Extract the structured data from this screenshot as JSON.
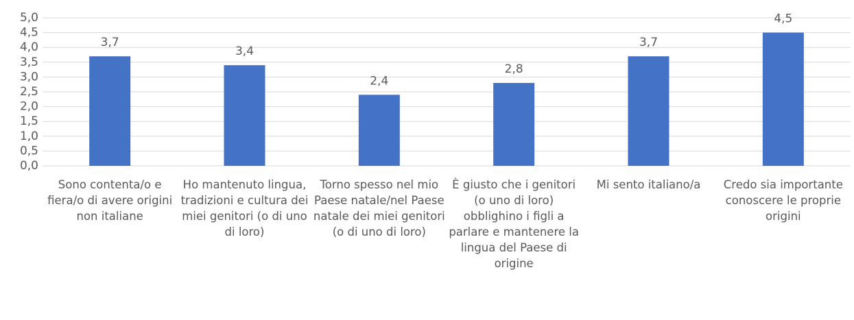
{
  "chart_data": {
    "type": "bar",
    "categories": [
      "Sono contenta/o e fiera/o di avere origini non italiane",
      "Ho mantenuto lingua, tradizioni e cultura dei miei genitori (o di uno di loro)",
      "Torno spesso nel mio Paese natale/nel Paese natale dei miei genitori (o di uno di loro)",
      "È giusto che i genitori (o uno di loro) obblighino i figli a parlare e mantenere la lingua del Paese di origine",
      "Mi sento italiano/a",
      "Credo sia importante conoscere le proprie origini"
    ],
    "values": [
      3.7,
      3.4,
      2.4,
      2.8,
      3.7,
      4.5
    ],
    "value_labels": [
      "3,7",
      "3,4",
      "2,4",
      "2,8",
      "3,7",
      "4,5"
    ],
    "color": "#4472c4",
    "ylim": [
      0,
      5
    ],
    "yticks": [
      {
        "value": 0,
        "label": "0,0"
      },
      {
        "value": 0.5,
        "label": "0,5"
      },
      {
        "value": 1,
        "label": "1,0"
      },
      {
        "value": 1.5,
        "label": "1,5"
      },
      {
        "value": 2,
        "label": "2,0"
      },
      {
        "value": 2.5,
        "label": "2,5"
      },
      {
        "value": 3,
        "label": "3,0"
      },
      {
        "value": 3.5,
        "label": "3,5"
      },
      {
        "value": 4,
        "label": "4,0"
      },
      {
        "value": 4.5,
        "label": "4,5"
      },
      {
        "value": 5,
        "label": "5,0"
      }
    ],
    "grid": true
  }
}
